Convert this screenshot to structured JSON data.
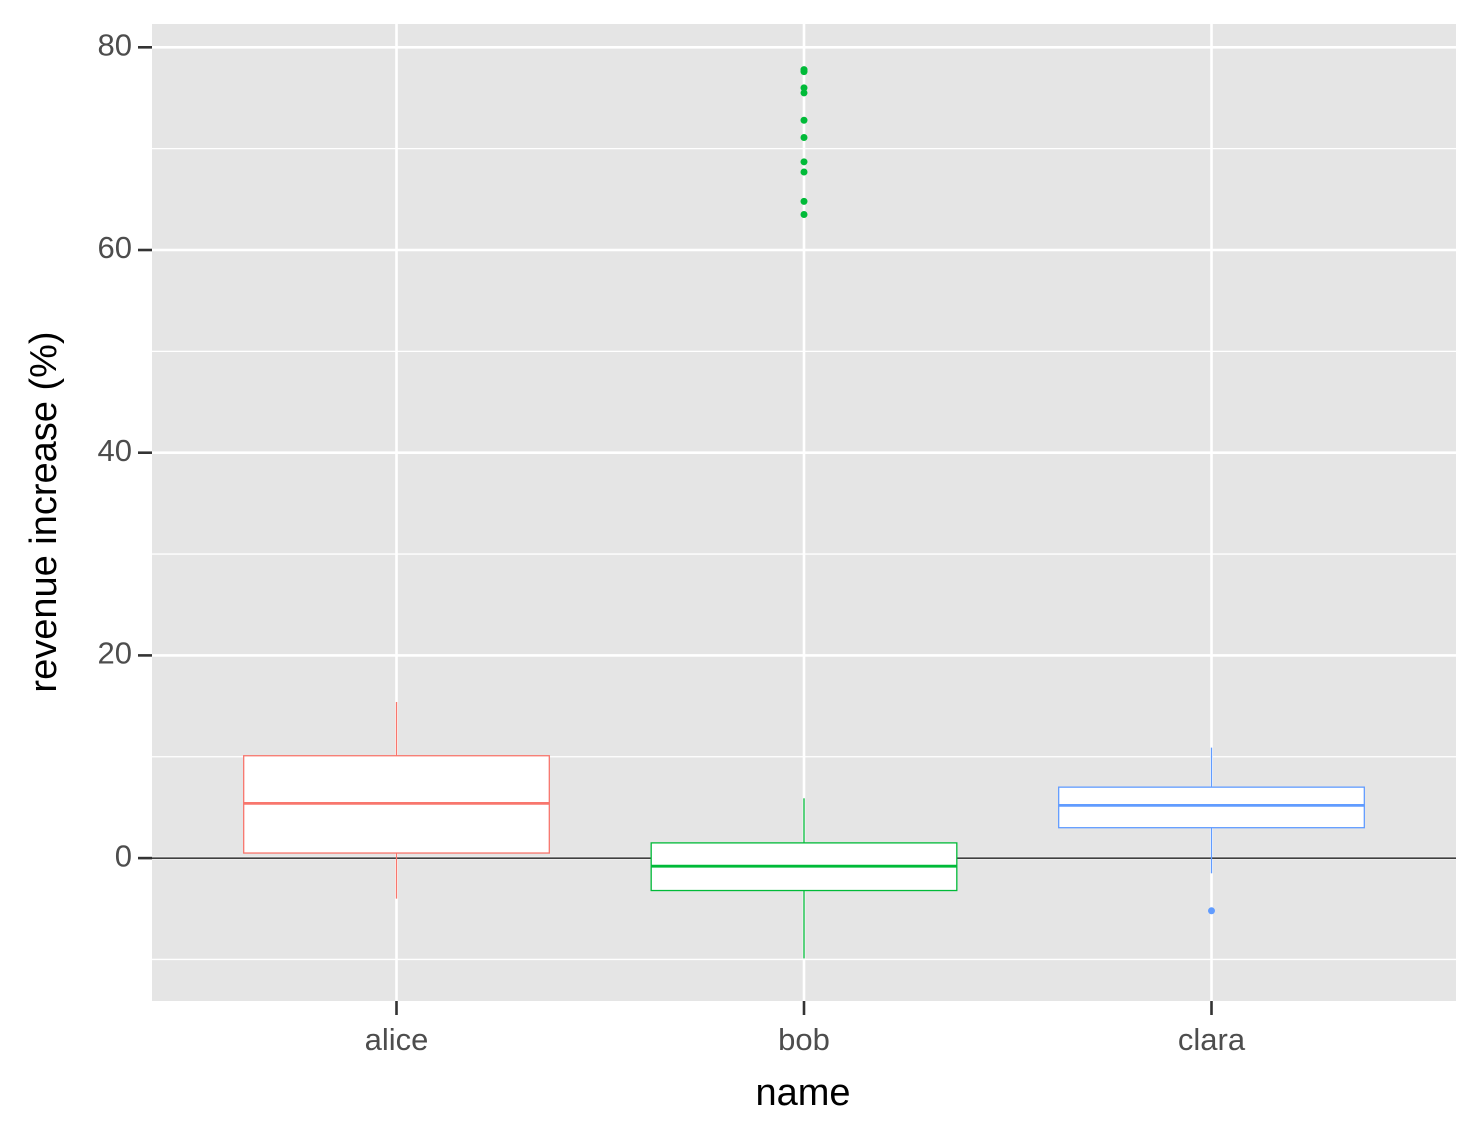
{
  "chart_data": {
    "type": "box",
    "x_label": "name",
    "y_label": "revenue increase (%)",
    "categories": [
      "alice",
      "bob",
      "clara"
    ],
    "series": [
      {
        "name": "alice",
        "color": "#F8766D",
        "whislo": -4.0,
        "q1": 0.5,
        "median": 5.4,
        "q3": 10.1,
        "whishi": 15.4,
        "outliers": []
      },
      {
        "name": "bob",
        "color": "#00BA38",
        "whislo": -9.9,
        "q1": -3.2,
        "median": -0.8,
        "q3": 1.5,
        "whishi": 5.9,
        "outliers": [
          77.8,
          77.6,
          76.0,
          75.5,
          72.8,
          71.1,
          68.7,
          67.7,
          64.8,
          63.5
        ]
      },
      {
        "name": "clara",
        "color": "#619CFF",
        "whislo": -1.5,
        "q1": 3.0,
        "median": 5.2,
        "q3": 7.0,
        "whishi": 10.9,
        "outliers": [
          -5.2
        ]
      }
    ],
    "hline": 0,
    "ylim": [
      -14.1,
      82.3
    ],
    "yticks": [
      0,
      20,
      40,
      60,
      80
    ],
    "yminor": [
      -10,
      10,
      30,
      50,
      70
    ],
    "grid": true
  }
}
